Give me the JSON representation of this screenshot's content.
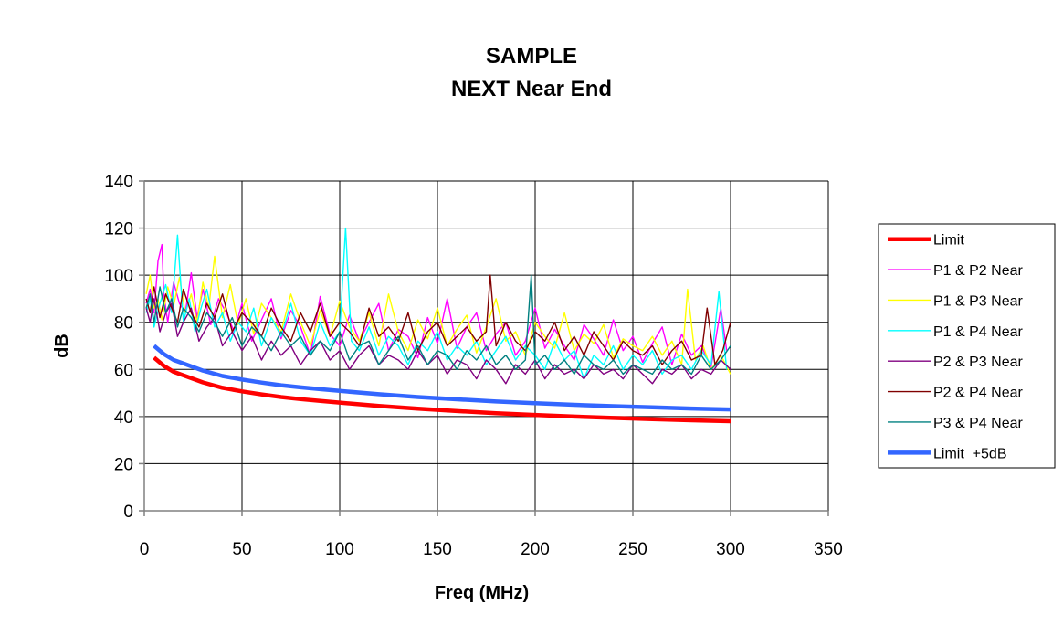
{
  "chart_data": {
    "type": "line",
    "title": "SAMPLE",
    "subtitle": "NEXT Near End",
    "xlabel": "Freq (MHz)",
    "ylabel": "dB",
    "xlim": [
      0,
      350
    ],
    "ylim": [
      0,
      140
    ],
    "x_ticks": [
      0,
      50,
      100,
      150,
      200,
      250,
      300,
      350
    ],
    "y_ticks": [
      0,
      20,
      40,
      60,
      80,
      100,
      120,
      140
    ],
    "grid": "on",
    "legend_position": "right",
    "series": [
      {
        "name": "Limit",
        "color": "#ff0000",
        "x": [
          5,
          10,
          15,
          20,
          30,
          40,
          50,
          60,
          70,
          80,
          90,
          100,
          120,
          140,
          160,
          180,
          200,
          220,
          240,
          260,
          280,
          300
        ],
        "y": [
          65,
          61.5,
          59,
          57.5,
          54.5,
          52.2,
          50.7,
          49.4,
          48.3,
          47.4,
          46.6,
          45.9,
          44.5,
          43.3,
          42.3,
          41.4,
          40.7,
          40.0,
          39.4,
          38.9,
          38.4,
          38.0
        ]
      },
      {
        "name": "P1 & P2 Near",
        "color": "#ff00ff",
        "x": [
          1,
          3,
          5,
          7,
          9,
          10,
          12,
          15,
          18,
          21,
          24,
          27,
          30,
          34,
          38,
          42,
          46,
          50,
          55,
          60,
          65,
          70,
          75,
          80,
          85,
          90,
          95,
          100,
          105,
          110,
          115,
          120,
          125,
          130,
          135,
          140,
          145,
          150,
          155,
          160,
          165,
          170,
          175,
          180,
          185,
          190,
          195,
          200,
          205,
          210,
          215,
          220,
          225,
          230,
          235,
          240,
          245,
          250,
          255,
          260,
          265,
          270,
          275,
          280,
          285,
          290,
          295,
          298
        ],
        "y": [
          88,
          94,
          84,
          106,
          113,
          92,
          80,
          97,
          88,
          84,
          101,
          82,
          94,
          79,
          90,
          84,
          76,
          88,
          72,
          81,
          90,
          73,
          85,
          78,
          66,
          91,
          75,
          70,
          83,
          72,
          80,
          88,
          68,
          77,
          74,
          65,
          82,
          71,
          90,
          69,
          78,
          84,
          68,
          75,
          80,
          66,
          72,
          86,
          69,
          77,
          70,
          64,
          79,
          73,
          66,
          81,
          68,
          74,
          63,
          71,
          78,
          62,
          75,
          66,
          70,
          61,
          86,
          68
        ]
      },
      {
        "name": "P1 & P3 Near",
        "color": "#ffff00",
        "x": [
          1,
          3,
          5,
          7,
          9,
          12,
          15,
          18,
          21,
          24,
          27,
          30,
          33,
          36,
          40,
          44,
          48,
          52,
          56,
          60,
          65,
          70,
          75,
          80,
          85,
          90,
          95,
          100,
          105,
          110,
          115,
          120,
          125,
          130,
          135,
          140,
          145,
          150,
          155,
          160,
          165,
          170,
          175,
          180,
          185,
          190,
          195,
          200,
          205,
          210,
          215,
          220,
          225,
          230,
          235,
          240,
          245,
          250,
          255,
          260,
          265,
          270,
          275,
          278,
          282,
          286,
          290,
          295,
          300
        ],
        "y": [
          92,
          100,
          86,
          90,
          81,
          95,
          87,
          99,
          84,
          92,
          80,
          97,
          86,
          108,
          82,
          96,
          79,
          90,
          75,
          88,
          82,
          76,
          92,
          80,
          70,
          85,
          74,
          89,
          78,
          72,
          84,
          70,
          92,
          76,
          68,
          81,
          73,
          86,
          70,
          77,
          83,
          67,
          78,
          90,
          72,
          76,
          66,
          80,
          74,
          69,
          84,
          68,
          75,
          71,
          79,
          65,
          73,
          70,
          68,
          74,
          66,
          72,
          62,
          94,
          64,
          70,
          60,
          66,
          58
        ]
      },
      {
        "name": "P1 & P4 Near",
        "color": "#00ffff",
        "x": [
          1,
          3,
          5,
          8,
          11,
          14,
          17,
          20,
          23,
          26,
          29,
          32,
          36,
          40,
          44,
          48,
          52,
          56,
          60,
          65,
          70,
          75,
          80,
          85,
          90,
          95,
          100,
          103,
          106,
          110,
          115,
          120,
          125,
          130,
          135,
          140,
          145,
          150,
          155,
          160,
          165,
          170,
          175,
          180,
          185,
          190,
          195,
          200,
          205,
          210,
          215,
          220,
          225,
          230,
          235,
          240,
          245,
          250,
          255,
          260,
          265,
          270,
          275,
          280,
          285,
          290,
          294,
          298
        ],
        "y": [
          84,
          90,
          78,
          88,
          96,
          84,
          117,
          80,
          90,
          76,
          86,
          94,
          78,
          84,
          72,
          80,
          76,
          86,
          70,
          82,
          74,
          88,
          72,
          66,
          80,
          70,
          76,
          120,
          72,
          68,
          78,
          66,
          74,
          70,
          62,
          72,
          68,
          76,
          64,
          70,
          66,
          72,
          62,
          68,
          74,
          64,
          70,
          66,
          60,
          72,
          64,
          68,
          56,
          66,
          62,
          70,
          60,
          66,
          62,
          68,
          58,
          64,
          66,
          60,
          68,
          62,
          93,
          60
        ]
      },
      {
        "name": "P2 & P3 Near",
        "color": "#800080",
        "x": [
          1,
          3,
          5,
          8,
          11,
          14,
          17,
          20,
          24,
          28,
          32,
          36,
          40,
          45,
          50,
          55,
          60,
          65,
          70,
          75,
          80,
          85,
          90,
          95,
          100,
          105,
          110,
          115,
          120,
          125,
          130,
          135,
          140,
          145,
          150,
          155,
          160,
          165,
          170,
          175,
          180,
          185,
          190,
          195,
          200,
          205,
          210,
          215,
          220,
          225,
          230,
          235,
          240,
          245,
          250,
          255,
          260,
          265,
          270,
          275,
          280,
          285,
          290,
          295,
          300
        ],
        "y": [
          86,
          80,
          90,
          76,
          84,
          88,
          74,
          80,
          86,
          72,
          78,
          82,
          70,
          76,
          68,
          74,
          64,
          72,
          66,
          70,
          62,
          68,
          72,
          64,
          68,
          60,
          66,
          70,
          62,
          66,
          64,
          60,
          68,
          62,
          66,
          58,
          64,
          62,
          56,
          64,
          60,
          54,
          62,
          58,
          64,
          56,
          62,
          58,
          60,
          56,
          62,
          58,
          60,
          56,
          62,
          58,
          54,
          60,
          58,
          62,
          56,
          60,
          58,
          64,
          60
        ]
      },
      {
        "name": "P2 & P4 Near",
        "color": "#800000",
        "x": [
          1,
          3,
          5,
          8,
          11,
          14,
          17,
          20,
          24,
          28,
          32,
          36,
          40,
          45,
          50,
          55,
          60,
          65,
          70,
          75,
          80,
          85,
          90,
          95,
          100,
          105,
          110,
          115,
          120,
          125,
          130,
          135,
          140,
          145,
          150,
          155,
          160,
          165,
          170,
          175,
          177,
          180,
          185,
          190,
          195,
          200,
          205,
          210,
          215,
          220,
          225,
          230,
          235,
          240,
          245,
          250,
          255,
          260,
          265,
          270,
          275,
          280,
          285,
          288,
          292,
          296,
          300
        ],
        "y": [
          90,
          84,
          95,
          82,
          92,
          86,
          80,
          94,
          84,
          78,
          88,
          82,
          92,
          76,
          84,
          80,
          74,
          86,
          78,
          72,
          84,
          76,
          88,
          74,
          80,
          76,
          70,
          86,
          74,
          78,
          72,
          84,
          68,
          76,
          80,
          70,
          74,
          78,
          72,
          76,
          100,
          70,
          80,
          72,
          68,
          76,
          72,
          80,
          68,
          74,
          66,
          76,
          70,
          64,
          72,
          68,
          66,
          70,
          62,
          68,
          72,
          64,
          66,
          86,
          62,
          68,
          80
        ]
      },
      {
        "name": "P3 & P4 Near",
        "color": "#008080",
        "x": [
          1,
          3,
          5,
          8,
          11,
          14,
          17,
          20,
          24,
          28,
          32,
          36,
          40,
          45,
          50,
          55,
          60,
          65,
          70,
          75,
          80,
          85,
          90,
          95,
          100,
          105,
          110,
          115,
          120,
          125,
          130,
          135,
          140,
          145,
          150,
          155,
          160,
          165,
          170,
          175,
          180,
          185,
          190,
          195,
          198,
          200,
          205,
          210,
          215,
          220,
          225,
          230,
          235,
          240,
          245,
          250,
          255,
          260,
          265,
          270,
          275,
          280,
          285,
          290,
          295,
          300
        ],
        "y": [
          86,
          92,
          80,
          95,
          84,
          90,
          78,
          86,
          82,
          76,
          84,
          80,
          74,
          82,
          70,
          78,
          74,
          68,
          76,
          70,
          74,
          66,
          72,
          68,
          76,
          64,
          70,
          72,
          62,
          68,
          74,
          64,
          70,
          62,
          68,
          66,
          60,
          68,
          64,
          70,
          62,
          66,
          60,
          64,
          100,
          62,
          66,
          60,
          64,
          58,
          66,
          62,
          60,
          64,
          58,
          62,
          60,
          58,
          64,
          60,
          62,
          58,
          66,
          60,
          64,
          70
        ]
      },
      {
        "name": "Limit  +5dB",
        "color": "#3366ff",
        "x": [
          5,
          10,
          15,
          20,
          30,
          40,
          50,
          60,
          70,
          80,
          90,
          100,
          120,
          140,
          160,
          180,
          200,
          220,
          240,
          260,
          280,
          300
        ],
        "y": [
          70,
          66.5,
          64,
          62.5,
          59.5,
          57.2,
          55.7,
          54.4,
          53.3,
          52.4,
          51.6,
          50.9,
          49.5,
          48.3,
          47.3,
          46.4,
          45.7,
          45.0,
          44.4,
          43.9,
          43.4,
          43.0
        ]
      }
    ]
  }
}
